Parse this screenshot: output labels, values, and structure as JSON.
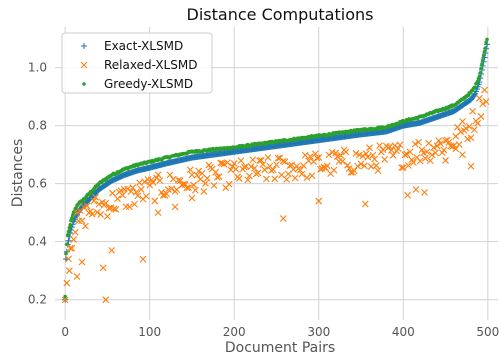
{
  "chart_data": {
    "type": "scatter",
    "title": "Distance Computations",
    "xlabel": "Document Pairs",
    "ylabel": "Distances",
    "xlim": [
      -12,
      512
    ],
    "ylim": [
      0.13,
      1.14
    ],
    "xticks": [
      0,
      100,
      200,
      300,
      400,
      500
    ],
    "yticks": [
      0.2,
      0.4,
      0.6,
      0.8,
      1.0
    ],
    "xtick_labels": [
      "0",
      "100",
      "200",
      "300",
      "400",
      "500"
    ],
    "ytick_labels": [
      "0.2",
      "0.4",
      "0.6",
      "0.8",
      "1.0"
    ],
    "grid": true,
    "legend_position": "top-left",
    "n_points": 500,
    "series": [
      {
        "name": "Exact-XLSMD",
        "marker": "plus",
        "color": "#1f77b4",
        "curve_x": [
          0,
          1,
          3,
          6,
          10,
          15,
          20,
          30,
          40,
          55,
          70,
          85,
          100,
          120,
          150,
          200,
          250,
          300,
          350,
          380,
          400,
          420,
          440,
          460,
          470,
          480,
          485,
          490,
          495,
          499
        ],
        "curve_y": [
          0.2,
          0.34,
          0.39,
          0.43,
          0.47,
          0.5,
          0.52,
          0.55,
          0.58,
          0.61,
          0.63,
          0.645,
          0.655,
          0.67,
          0.69,
          0.71,
          0.73,
          0.75,
          0.77,
          0.78,
          0.8,
          0.81,
          0.83,
          0.85,
          0.87,
          0.89,
          0.91,
          0.95,
          1.02,
          1.08
        ]
      },
      {
        "name": "Relaxed-XLSMD",
        "marker": "x",
        "color": "#ff7f0e",
        "curve_x": [
          0,
          2,
          5,
          10,
          20,
          30,
          50,
          70,
          100,
          150,
          200,
          250,
          300,
          350,
          400,
          430,
          460,
          480,
          490,
          499
        ],
        "curve_y": [
          0.19,
          0.3,
          0.38,
          0.44,
          0.48,
          0.51,
          0.53,
          0.55,
          0.58,
          0.61,
          0.635,
          0.65,
          0.665,
          0.68,
          0.7,
          0.72,
          0.75,
          0.8,
          0.86,
          0.93
        ],
        "outliers": [
          [
            5,
            0.3
          ],
          [
            14,
            0.28
          ],
          [
            20,
            0.33
          ],
          [
            45,
            0.31
          ],
          [
            48,
            0.2
          ],
          [
            55,
            0.37
          ],
          [
            92,
            0.34
          ],
          [
            110,
            0.5
          ],
          [
            130,
            0.52
          ],
          [
            150,
            0.55
          ],
          [
            258,
            0.48
          ],
          [
            300,
            0.54
          ],
          [
            355,
            0.53
          ],
          [
            405,
            0.56
          ],
          [
            415,
            0.58
          ],
          [
            425,
            0.57
          ],
          [
            450,
            0.68
          ],
          [
            462,
            0.72
          ],
          [
            470,
            0.7
          ],
          [
            480,
            0.66
          ]
        ]
      },
      {
        "name": "Greedy-XLSMD",
        "marker": "dot",
        "color": "#2ca02c",
        "curve_x": [
          0,
          1,
          3,
          6,
          10,
          15,
          20,
          30,
          40,
          55,
          70,
          85,
          100,
          120,
          150,
          200,
          250,
          300,
          350,
          380,
          400,
          420,
          440,
          460,
          470,
          480,
          485,
          490,
          495,
          499
        ],
        "curve_y": [
          0.21,
          0.36,
          0.42,
          0.46,
          0.5,
          0.53,
          0.54,
          0.57,
          0.6,
          0.63,
          0.65,
          0.665,
          0.675,
          0.69,
          0.71,
          0.725,
          0.745,
          0.765,
          0.785,
          0.795,
          0.815,
          0.83,
          0.85,
          0.87,
          0.89,
          0.915,
          0.935,
          0.97,
          1.04,
          1.1
        ]
      }
    ]
  }
}
